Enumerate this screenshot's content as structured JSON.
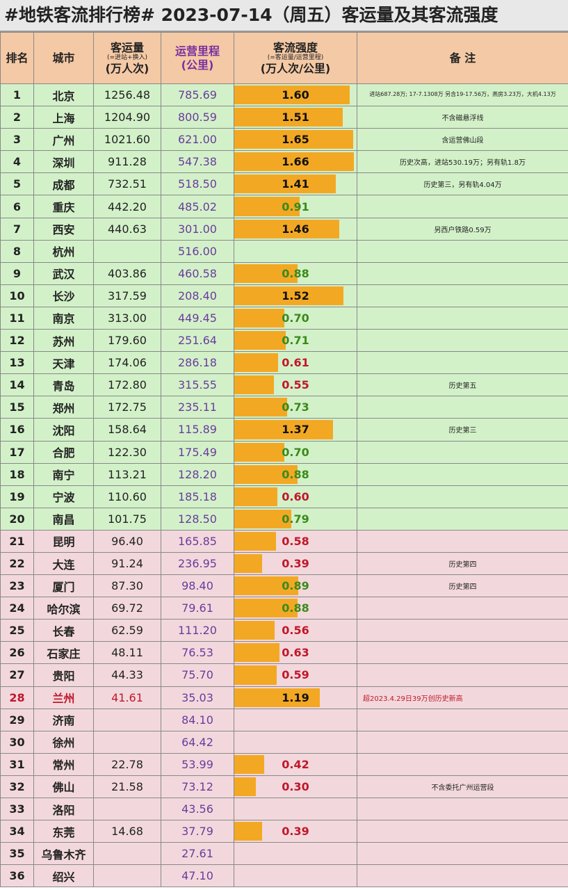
{
  "title": "#地铁客流排行榜# 2023-07-14（周五）客运量及其客流强度",
  "headers": {
    "rank": "排名",
    "city": "城市",
    "flow": "客运量",
    "flow_sub": "(=进站+换入)",
    "flow_unit": "(万人次)",
    "mileage": "运营里程",
    "mileage_unit": "(公里)",
    "density": "客流强度",
    "density_sub": "(=客运量/运营里程)",
    "density_unit": "(万人次/公里)",
    "note": "备 注"
  },
  "colors": {
    "bar": "#f3a824",
    "top20_bg": "#d3f1c9",
    "rest_bg": "#f2d8dc",
    "header_bg": "#f4c9a5",
    "highlight": "#c0172a",
    "mileage_text": "#6a3b9c"
  },
  "rows": [
    {
      "rank": "1",
      "city": "北京",
      "flow": "1256.48",
      "mileage": "785.69",
      "density": "1.60",
      "note": "进站687.28万; 17-7.1308万 另含19-17.56万，燕房3.23万，大机4.13万"
    },
    {
      "rank": "2",
      "city": "上海",
      "flow": "1204.90",
      "mileage": "800.59",
      "density": "1.51",
      "note": "不含磁悬浮线"
    },
    {
      "rank": "3",
      "city": "广州",
      "flow": "1021.60",
      "mileage": "621.00",
      "density": "1.65",
      "note": "含运营佛山段"
    },
    {
      "rank": "4",
      "city": "深圳",
      "flow": "911.28",
      "mileage": "547.38",
      "density": "1.66",
      "note": "历史次高，进站530.19万；另有轨1.8万"
    },
    {
      "rank": "5",
      "city": "成都",
      "flow": "732.51",
      "mileage": "518.50",
      "density": "1.41",
      "note": "历史第三，另有轨4.04万"
    },
    {
      "rank": "6",
      "city": "重庆",
      "flow": "442.20",
      "mileage": "485.02",
      "density": "0.91",
      "note": ""
    },
    {
      "rank": "7",
      "city": "西安",
      "flow": "440.63",
      "mileage": "301.00",
      "density": "1.46",
      "note": "另西户铁路0.59万"
    },
    {
      "rank": "8",
      "city": "杭州",
      "flow": "",
      "mileage": "516.00",
      "density": "",
      "note": ""
    },
    {
      "rank": "9",
      "city": "武汉",
      "flow": "403.86",
      "mileage": "460.58",
      "density": "0.88",
      "note": ""
    },
    {
      "rank": "10",
      "city": "长沙",
      "flow": "317.59",
      "mileage": "208.40",
      "density": "1.52",
      "note": ""
    },
    {
      "rank": "11",
      "city": "南京",
      "flow": "313.00",
      "mileage": "449.45",
      "density": "0.70",
      "note": ""
    },
    {
      "rank": "12",
      "city": "苏州",
      "flow": "179.60",
      "mileage": "251.64",
      "density": "0.71",
      "note": ""
    },
    {
      "rank": "13",
      "city": "天津",
      "flow": "174.06",
      "mileage": "286.18",
      "density": "0.61",
      "note": ""
    },
    {
      "rank": "14",
      "city": "青岛",
      "flow": "172.80",
      "mileage": "315.55",
      "density": "0.55",
      "note": "历史第五"
    },
    {
      "rank": "15",
      "city": "郑州",
      "flow": "172.75",
      "mileage": "235.11",
      "density": "0.73",
      "note": ""
    },
    {
      "rank": "16",
      "city": "沈阳",
      "flow": "158.64",
      "mileage": "115.89",
      "density": "1.37",
      "note": "历史第三"
    },
    {
      "rank": "17",
      "city": "合肥",
      "flow": "122.30",
      "mileage": "175.49",
      "density": "0.70",
      "note": ""
    },
    {
      "rank": "18",
      "city": "南宁",
      "flow": "113.21",
      "mileage": "128.20",
      "density": "0.88",
      "note": ""
    },
    {
      "rank": "19",
      "city": "宁波",
      "flow": "110.60",
      "mileage": "185.18",
      "density": "0.60",
      "note": ""
    },
    {
      "rank": "20",
      "city": "南昌",
      "flow": "101.75",
      "mileage": "128.50",
      "density": "0.79",
      "note": ""
    },
    {
      "rank": "21",
      "city": "昆明",
      "flow": "96.40",
      "mileage": "165.85",
      "density": "0.58",
      "note": ""
    },
    {
      "rank": "22",
      "city": "大连",
      "flow": "91.24",
      "mileage": "236.95",
      "density": "0.39",
      "note": "历史第四"
    },
    {
      "rank": "23",
      "city": "厦门",
      "flow": "87.30",
      "mileage": "98.40",
      "density": "0.89",
      "note": "历史第四"
    },
    {
      "rank": "24",
      "city": "哈尔滨",
      "flow": "69.72",
      "mileage": "79.61",
      "density": "0.88",
      "note": ""
    },
    {
      "rank": "25",
      "city": "长春",
      "flow": "62.59",
      "mileage": "111.20",
      "density": "0.56",
      "note": ""
    },
    {
      "rank": "26",
      "city": "石家庄",
      "flow": "48.11",
      "mileage": "76.53",
      "density": "0.63",
      "note": ""
    },
    {
      "rank": "27",
      "city": "贵阳",
      "flow": "44.33",
      "mileage": "75.70",
      "density": "0.59",
      "note": ""
    },
    {
      "rank": "28",
      "city": "兰州",
      "flow": "41.61",
      "mileage": "35.03",
      "density": "1.19",
      "note": "超2023.4.29日39万创历史新高"
    },
    {
      "rank": "29",
      "city": "济南",
      "flow": "",
      "mileage": "84.10",
      "density": "",
      "note": ""
    },
    {
      "rank": "30",
      "city": "徐州",
      "flow": "",
      "mileage": "64.42",
      "density": "",
      "note": ""
    },
    {
      "rank": "31",
      "city": "常州",
      "flow": "22.78",
      "mileage": "53.99",
      "density": "0.42",
      "note": ""
    },
    {
      "rank": "32",
      "city": "佛山",
      "flow": "21.58",
      "mileage": "73.12",
      "density": "0.30",
      "note": "不含委托广州运营段"
    },
    {
      "rank": "33",
      "city": "洛阳",
      "flow": "",
      "mileage": "43.56",
      "density": "",
      "note": ""
    },
    {
      "rank": "34",
      "city": "东莞",
      "flow": "14.68",
      "mileage": "37.79",
      "density": "0.39",
      "note": ""
    },
    {
      "rank": "35",
      "city": "乌鲁木齐",
      "flow": "",
      "mileage": "27.61",
      "density": "",
      "note": ""
    },
    {
      "rank": "36",
      "city": "绍兴",
      "flow": "",
      "mileage": "47.10",
      "density": "",
      "note": ""
    }
  ]
}
